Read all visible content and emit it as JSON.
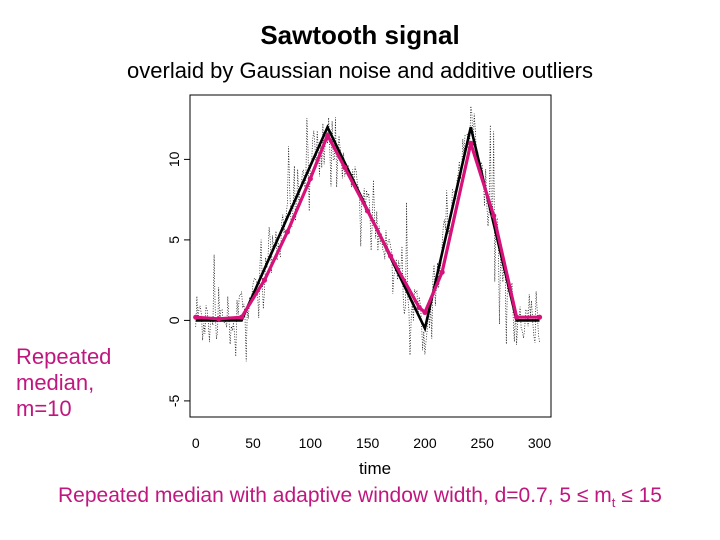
{
  "page": {
    "title": "Sawtooth signal",
    "subtitle": "overlaid by Gaussian noise and additive outliers",
    "side_label": [
      "Repeated",
      "median,",
      "m=10"
    ],
    "caption_main": "Repeated median with adaptive window width, d=0.7, 5 ",
    "caption_var": "m",
    "caption_sub": "t",
    "caption_end": " 15",
    "leq_symbol": "≤"
  },
  "colors": {
    "true_signal": "#000000",
    "noisy": "#000000",
    "filter": "#d6127a",
    "label_text": "#c0177f"
  },
  "chart_data": {
    "type": "line",
    "title": "",
    "xlabel": "time",
    "ylabel": "",
    "xlim": [
      -5,
      310
    ],
    "ylim": [
      -6,
      14
    ],
    "x_ticks": [
      0,
      50,
      100,
      150,
      200,
      250,
      300
    ],
    "y_ticks": [
      -5,
      0,
      5,
      10
    ],
    "grid": false,
    "series": [
      {
        "style": "true-signal",
        "x": [
          0,
          40,
          115,
          200,
          240,
          280,
          300
        ],
        "y": [
          0,
          0,
          12,
          -0.5,
          12,
          0,
          0
        ]
      },
      {
        "style": "repeated-median-filter",
        "x": [
          0,
          20,
          40,
          60,
          80,
          100,
          115,
          130,
          150,
          170,
          195,
          200,
          215,
          240,
          260,
          280,
          300
        ],
        "y": [
          0.2,
          0.1,
          0.2,
          2.5,
          5.5,
          8.8,
          11.5,
          9.5,
          6.8,
          4,
          0.8,
          0.5,
          3,
          11,
          6.5,
          0.2,
          0.2
        ]
      }
    ],
    "noisy_signal": "dotted trace around the sawtooth (noise + outliers)"
  }
}
